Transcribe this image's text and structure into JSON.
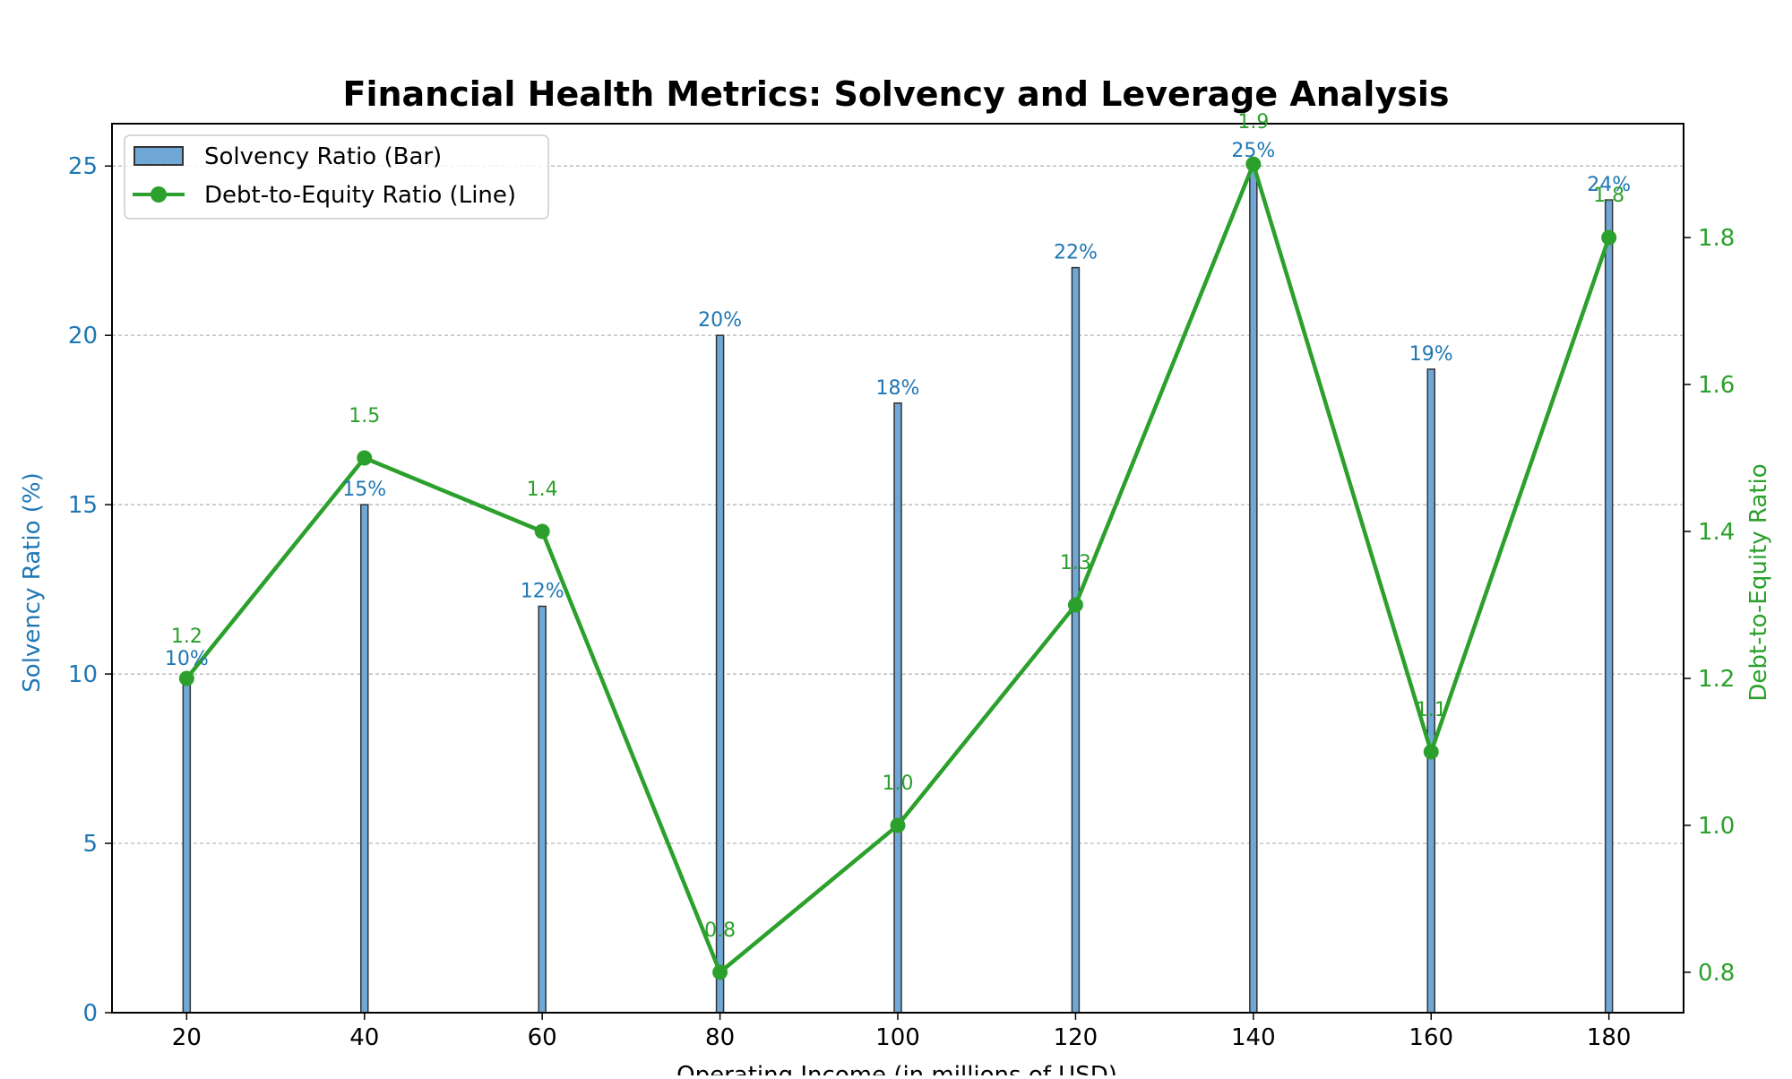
{
  "chart_data": {
    "type": "bar+line",
    "title": "Financial Health Metrics: Solvency and Leverage Analysis",
    "xlabel": "Operating Income (in millions of USD)",
    "ylabel_left": "Solvency Ratio (%)",
    "ylabel_right": "Debt-to-Equity Ratio",
    "x": [
      20,
      40,
      60,
      80,
      100,
      120,
      140,
      160,
      180
    ],
    "xlim": [
      11.6,
      188.4
    ],
    "ylim_left": [
      0,
      26.25
    ],
    "ylim_right": [
      0.745,
      1.955
    ],
    "xticks": [
      "20",
      "40",
      "60",
      "80",
      "100",
      "120",
      "140",
      "160",
      "180"
    ],
    "yticks_left": [
      "0",
      "5",
      "10",
      "15",
      "20",
      "25"
    ],
    "yticks_right": [
      "0.8",
      "1.0",
      "1.2",
      "1.4",
      "1.6",
      "1.8"
    ],
    "grid": "horizontal dashed",
    "legend_position": "upper-left",
    "series": [
      {
        "name": "Solvency Ratio (Bar)",
        "type": "bar",
        "axis": "left",
        "color": "#1f77b4",
        "fill": "#6fa8d6",
        "values": [
          10,
          15,
          12,
          20,
          18,
          22,
          25,
          19,
          24
        ],
        "labels": [
          "10%",
          "15%",
          "12%",
          "20%",
          "18%",
          "22%",
          "25%",
          "19%",
          "24%"
        ]
      },
      {
        "name": "Debt-to-Equity Ratio (Line)",
        "type": "line",
        "axis": "right",
        "color": "#2ca02c",
        "values": [
          1.2,
          1.5,
          1.4,
          0.8,
          1.0,
          1.3,
          1.9,
          1.1,
          1.8
        ],
        "labels": [
          "1.2",
          "1.5",
          "1.4",
          "0.8",
          "1.0",
          "1.3",
          "1.9",
          "1.1",
          "1.8"
        ]
      }
    ]
  }
}
